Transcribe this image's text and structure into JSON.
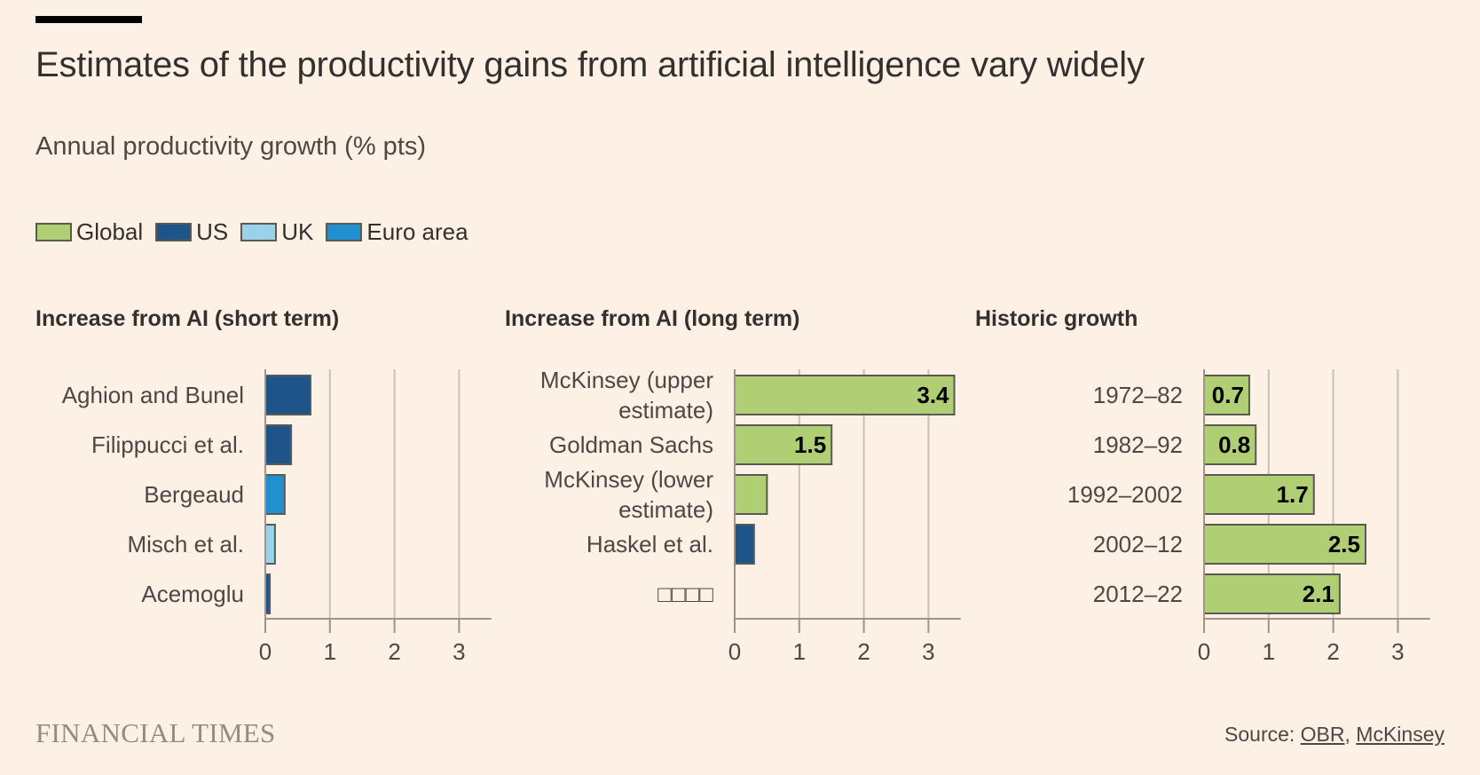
{
  "header": {
    "title": "Estimates of the productivity gains from artificial intelligence vary widely",
    "subtitle": "Annual productivity growth (% pts)"
  },
  "legend": [
    {
      "label": "Global",
      "color": "#b0cf74"
    },
    {
      "label": "US",
      "color": "#1f548a"
    },
    {
      "label": "UK",
      "color": "#9ad2ea"
    },
    {
      "label": "Euro area",
      "color": "#2190d0"
    }
  ],
  "colors": {
    "background": "#fdf1e6",
    "bar_border": "#5a5a55",
    "gridline": "#cdbfb5",
    "axis": "#9e948c",
    "label_text": "#4d4845",
    "value_text": "#000000"
  },
  "chart_data": [
    {
      "type": "bar",
      "orientation": "horizontal",
      "title": "Increase from AI (short term)",
      "categories": [
        "Aghion and Bunel",
        "Filippucci et al.",
        "Bergeaud",
        "Misch et al.",
        "Acemoglu"
      ],
      "values": [
        0.7,
        0.4,
        0.3,
        0.15,
        0.07
      ],
      "series_by_bar": [
        "US",
        "US",
        "Euro area",
        "UK",
        "US"
      ],
      "data_labels": [
        "",
        "",
        "",
        "",
        ""
      ],
      "xlim": [
        0,
        3.5
      ],
      "xticks": [
        "0",
        "1",
        "2",
        "3"
      ],
      "grid": true
    },
    {
      "type": "bar",
      "orientation": "horizontal",
      "title": "Increase from AI (long term)",
      "categories": [
        "McKinsey (upper estimate)",
        "Goldman Sachs",
        "McKinsey (lower estimate)",
        "Haskel et al.",
        "□□□□"
      ],
      "category_lines": [
        [
          "McKinsey (upper",
          "estimate)"
        ],
        [
          "Goldman Sachs"
        ],
        [
          "McKinsey (lower",
          "estimate)"
        ],
        [
          "Haskel et al."
        ],
        [
          "□□□□"
        ]
      ],
      "values": [
        3.4,
        1.5,
        0.5,
        0.3,
        null
      ],
      "series_by_bar": [
        "Global",
        "Global",
        "Global",
        "US",
        null
      ],
      "data_labels": [
        "3.4",
        "1.5",
        "",
        "",
        ""
      ],
      "xlim": [
        0,
        3.5
      ],
      "xticks": [
        "0",
        "1",
        "2",
        "3"
      ],
      "grid": true
    },
    {
      "type": "bar",
      "orientation": "horizontal",
      "title": "Historic growth",
      "categories": [
        "1972–82",
        "1982–92",
        "1992–2002",
        "2002–12",
        "2012–22"
      ],
      "values": [
        0.7,
        0.8,
        1.7,
        2.5,
        2.1
      ],
      "series_by_bar": [
        "Global",
        "Global",
        "Global",
        "Global",
        "Global"
      ],
      "data_labels": [
        "0.7",
        "0.8",
        "1.7",
        "2.5",
        "2.1"
      ],
      "xlim": [
        0,
        3.5
      ],
      "xticks": [
        "0",
        "1",
        "2",
        "3"
      ],
      "grid": true
    }
  ],
  "footer": {
    "logo": "FINANCIAL TIMES",
    "source_prefix": "Source: ",
    "sources": [
      "OBR",
      "McKinsey"
    ],
    "separator": ", "
  }
}
